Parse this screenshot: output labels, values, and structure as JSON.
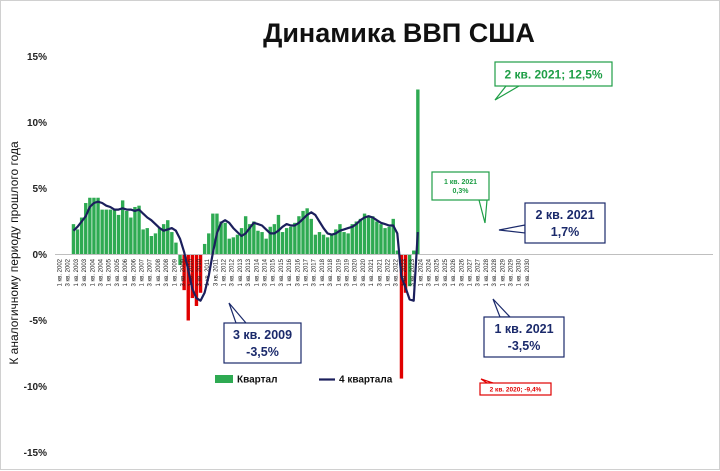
{
  "chart_data": {
    "type": "bar",
    "title": "Динамика ВВП США",
    "ylabel": "К аналогичному периоду прошлого года",
    "xlabel": "",
    "ylim": [
      -15,
      15
    ],
    "yticks": [
      "15%",
      "10%",
      "5%",
      "0%",
      "-5%",
      "-10%",
      "-15%"
    ],
    "grid": false,
    "legend_position": "bottom-left inside plot",
    "x_tick_labels": [
      "1 кв. 2002",
      "3 кв. 2002",
      "1 кв. 2003",
      "3 кв. 2003",
      "1 кв. 2004",
      "3 кв. 2004",
      "1 кв. 2005",
      "3 кв. 2005",
      "1 кв. 2006",
      "3 кв. 2006",
      "1 кв. 2007",
      "3 кв. 2007",
      "1 кв. 2008",
      "3 кв. 2008",
      "1 кв. 2009",
      "3 кв. 2009",
      "1 кв. 2010",
      "3 кв. 2010",
      "1 кв. 2011",
      "3 кв. 2011",
      "1 кв. 2012",
      "3 кв. 2012",
      "1 кв. 2013",
      "3 кв. 2013",
      "1 кв. 2014",
      "3 кв. 2014",
      "1 кв. 2015",
      "3 кв. 2015",
      "1 кв. 2016",
      "3 кв. 2016",
      "1 кв. 2017",
      "3 кв. 2017",
      "1 кв. 2018",
      "3 кв. 2018",
      "1 кв. 2019",
      "3 кв. 2019",
      "1 кв. 2020",
      "3 кв. 2020",
      "1 кв. 2021",
      "3 кв. 2021",
      "1 кв. 2022",
      "3 кв. 2022",
      "1 кв. 2023",
      "3 кв. 2023",
      "1 кв. 2024",
      "3 кв. 2024",
      "1 кв. 2025",
      "3 кв. 2025",
      "1 кв. 2026",
      "3 кв. 2026",
      "1 кв. 2027",
      "3 кв. 2027",
      "1 кв. 2028",
      "3 кв. 2028",
      "1 кв. 2029",
      "3 кв. 2029",
      "1 кв. 2030",
      "3 кв. 2030"
    ],
    "series": [
      {
        "name": "Квартал",
        "type": "bar",
        "color": "#2eaa52",
        "negative_color": "#e00000",
        "values": [
          null,
          null,
          null,
          null,
          2.3,
          1.9,
          2.8,
          3.9,
          4.3,
          4.3,
          4.3,
          3.4,
          3.4,
          3.4,
          3.4,
          3.0,
          4.1,
          3.3,
          2.8,
          3.6,
          3.7,
          1.9,
          2.0,
          1.4,
          1.6,
          2.0,
          2.3,
          2.6,
          1.7,
          0.9,
          -0.8,
          -2.7,
          -5.0,
          -3.3,
          -3.9,
          -2.9,
          0.8,
          1.6,
          3.1,
          3.1,
          2.5,
          2.4,
          1.2,
          1.3,
          1.5,
          2.0,
          2.9,
          2.3,
          2.5,
          1.8,
          1.7,
          1.2,
          2.1,
          2.3,
          3.0,
          1.7,
          2.0,
          2.1,
          2.4,
          2.9,
          3.3,
          3.5,
          2.7,
          1.5,
          1.7,
          1.5,
          1.3,
          1.6,
          1.9,
          2.3,
          1.7,
          1.6,
          2.3,
          2.5,
          2.7,
          3.1,
          2.9,
          2.9,
          2.5,
          2.3,
          2.0,
          2.1,
          2.7,
          0.3,
          -9.4,
          -2.9,
          -2.4,
          0.3,
          12.5,
          null,
          null,
          null
        ]
      },
      {
        "name": "4 квартала",
        "type": "line",
        "color": "#1b1f5c",
        "values": [
          null,
          null,
          null,
          null,
          1.8,
          2.1,
          2.5,
          2.9,
          3.6,
          3.9,
          4.0,
          3.9,
          3.7,
          3.6,
          3.4,
          3.4,
          3.5,
          3.4,
          3.4,
          3.3,
          3.4,
          3.1,
          2.8,
          2.6,
          2.3,
          2.0,
          1.8,
          1.9,
          2.0,
          1.8,
          1.2,
          0.2,
          -1.2,
          -2.6,
          -3.3,
          -3.5,
          -2.9,
          -1.6,
          0.1,
          1.6,
          2.4,
          2.6,
          2.4,
          2.0,
          1.7,
          1.4,
          1.6,
          2.0,
          2.4,
          2.3,
          2.2,
          1.9,
          1.6,
          1.6,
          1.8,
          2.1,
          2.3,
          2.2,
          2.2,
          2.4,
          2.7,
          3.0,
          3.2,
          3.0,
          2.5,
          2.0,
          1.6,
          1.5,
          1.6,
          1.8,
          1.9,
          2.0,
          2.1,
          2.3,
          2.6,
          2.8,
          2.9,
          2.8,
          2.6,
          2.4,
          2.3,
          2.2,
          2.2,
          1.6,
          -1.7,
          -2.5,
          -3.4,
          -3.5,
          1.7,
          null,
          null,
          null
        ]
      }
    ],
    "annotations": [
      {
        "label_lines": [
          "2 кв. 2021; 12,5%"
        ],
        "color": "#1e9e46",
        "fill": "#ffffff"
      },
      {
        "label_lines": [
          "1 кв. 2021",
          "0,3%"
        ],
        "color": "#1e9e46",
        "fill": "#ffffff"
      },
      {
        "label_lines": [
          "2 кв. 2021",
          "1,7%"
        ],
        "color": "#1b2a6b",
        "fill": "#ffffff"
      },
      {
        "label_lines": [
          "1 кв. 2021",
          "-3,5%"
        ],
        "color": "#1b2a6b",
        "fill": "#ffffff"
      },
      {
        "label_lines": [
          "3 кв. 2009",
          "-3,5%"
        ],
        "color": "#1b2a6b",
        "fill": "#ffffff"
      },
      {
        "label_lines": [
          "2 кв. 2020; -9,4%"
        ],
        "color": "#e00000",
        "fill": "#ffffff"
      }
    ]
  }
}
